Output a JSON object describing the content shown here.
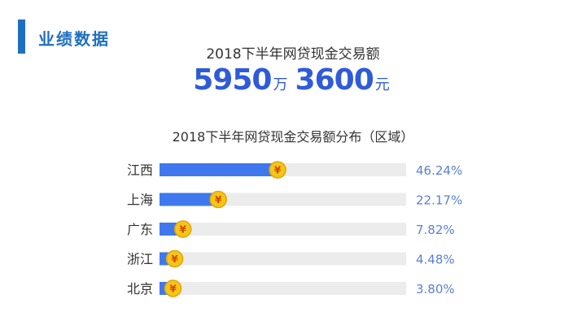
{
  "section": {
    "title": "业绩数据"
  },
  "headline": {
    "text": "2018下半年网贷现金交易额"
  },
  "amount": {
    "part1": "5950",
    "unit1": "万",
    "part2": "3600",
    "unit2": "元"
  },
  "colors": {
    "accent": "#1e6fc1",
    "bar": "#3f78ee",
    "track": "#ececec",
    "value_text": "#5b7fd6",
    "coin": "#f6c51a",
    "coin_symbol": "#d04a00"
  },
  "coin_icon": "yuan-coin-icon",
  "chart_data": {
    "type": "bar",
    "orientation": "horizontal",
    "title": "2018下半年网贷现金交易额分布（区域）",
    "categories": [
      "江西",
      "上海",
      "广东",
      "浙江",
      "北京"
    ],
    "values": [
      46.24,
      22.17,
      7.82,
      4.48,
      3.8
    ],
    "labels": [
      "46.24%",
      "22.17%",
      "7.82%",
      "4.48%",
      "3.80%"
    ],
    "xlim": [
      0,
      100
    ],
    "grid": false
  }
}
